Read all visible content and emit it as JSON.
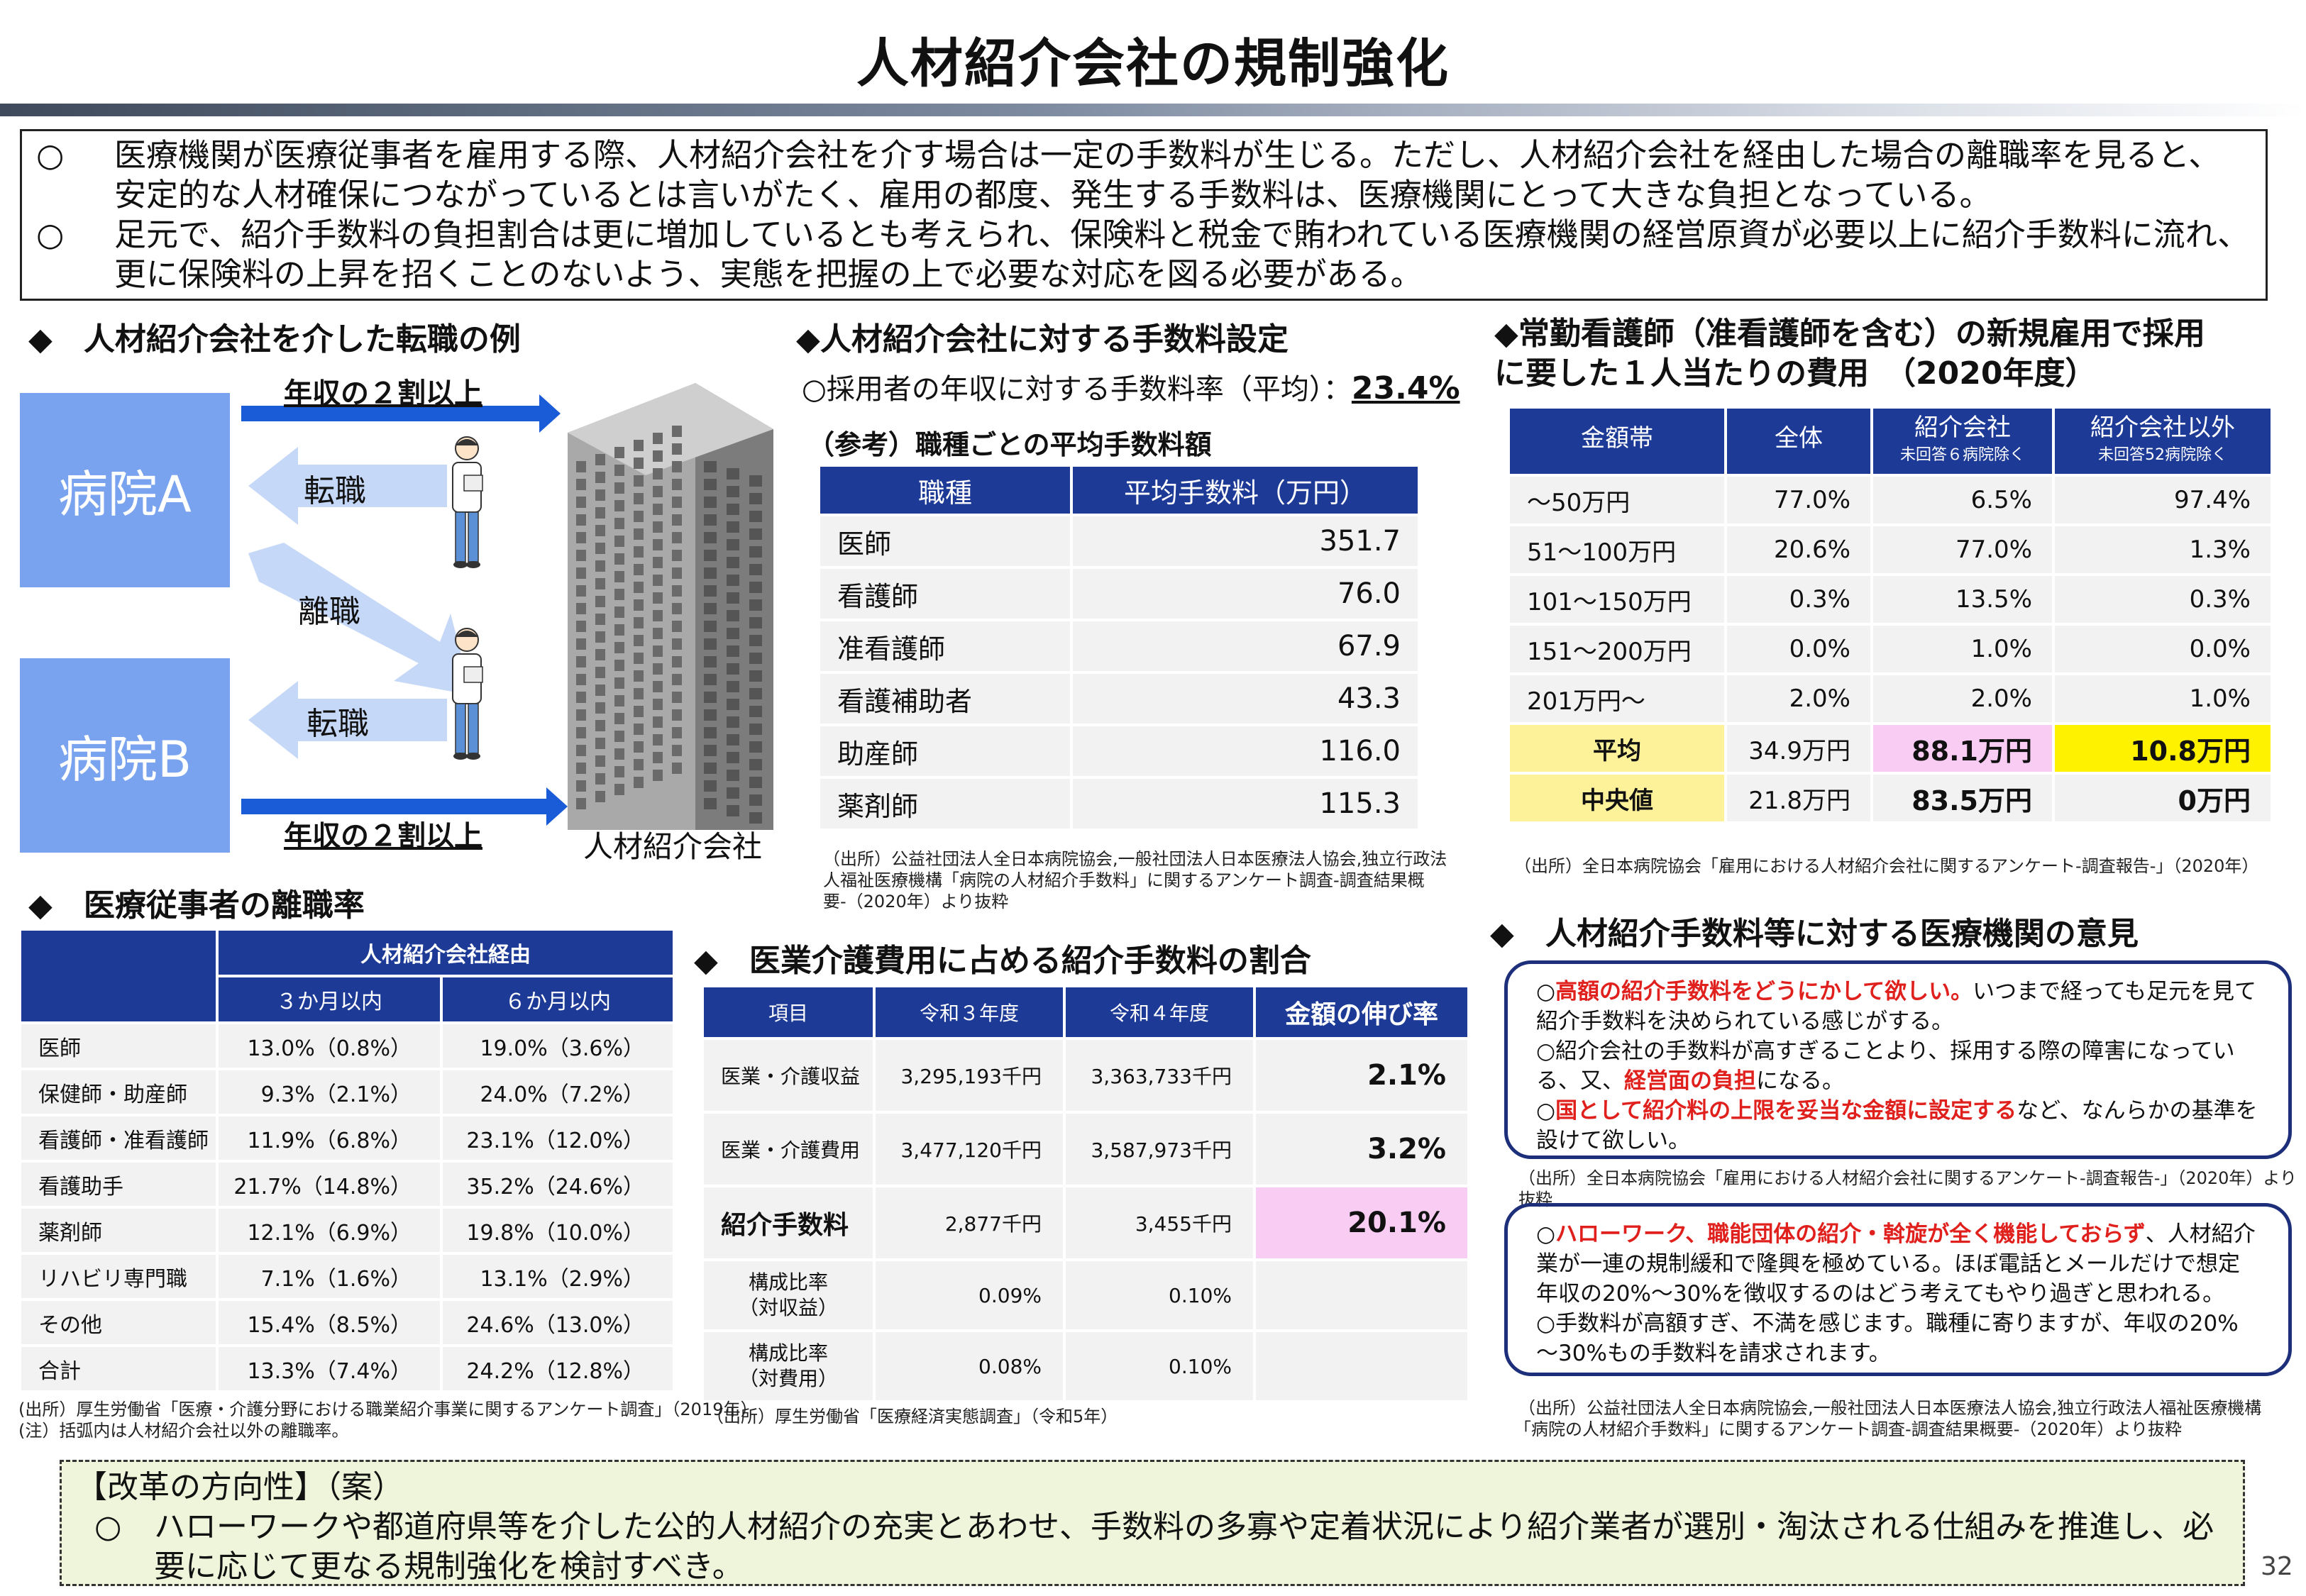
{
  "title": "人材紹介会社の規制強化",
  "intro": [
    {
      "mark": "○",
      "text": "医療機関が医療従事者を雇用する際、人材紹介会社を介す場合は一定の手数料が生じる。ただし、人材紹介会社を経由した場合の離職率を見ると、安定的な人材確保につながっているとは言いがたく、雇用の都度、発生する手数料は、医療機関にとって大きな負担となっている。"
    },
    {
      "mark": "○",
      "text": "足元で、紹介手数料の負担割合は更に増加しているとも考えられ、保険料と税金で賄われている医療機関の経営原資が必要以上に紹介手数料に流れ、更に保険料の上昇を招くことのないよう、実態を把握の上で必要な対応を図る必要がある。"
    }
  ],
  "diagram": {
    "heading": "◆　人材紹介会社を介した転職の例",
    "hospital_a": "病院A",
    "hospital_b": "病院B",
    "income_top": "年収の２割以上",
    "income_bottom": "年収の２割以上",
    "tenshoku1": "転職",
    "rishoku": "離職",
    "tenshoku2": "転職",
    "company": "人材紹介会社"
  },
  "fee": {
    "heading": "◆人材紹介会社に対する手数料設定",
    "rate_label": "○採用者の年収に対する手数料率（平均）：",
    "rate_value": "23.4%",
    "ref_heading": "（参考）職種ごとの平均手数料額",
    "headers": [
      "職種",
      "平均手数料（万円）"
    ],
    "rows": [
      [
        "医師",
        "351.7"
      ],
      [
        "看護師",
        "76.0"
      ],
      [
        "准看護師",
        "67.9"
      ],
      [
        "看護補助者",
        "43.3"
      ],
      [
        "助産師",
        "116.0"
      ],
      [
        "薬剤師",
        "115.3"
      ]
    ],
    "source": "（出所）公益社団法人全日本病院協会,一般社団法人日本医療法人協会,独立行政法人福祉医療機構「病院の人材紹介手数料」に関するアンケート調査-調査結果概要-（2020年）より抜粋"
  },
  "nurse": {
    "heading1": "◆常勤看護師（准看護師を含む）の新規雇用で採用",
    "heading2": "に要した１人当たりの費用　（2020年度）",
    "headers": [
      "金額帯",
      "全体",
      "紹介会社",
      "紹介会社以外"
    ],
    "subheaders": [
      "",
      "",
      "未回答６病院除く",
      "未回答52病院除く"
    ],
    "rows": [
      [
        "～50万円",
        "77.0%",
        "6.5%",
        "97.4%"
      ],
      [
        "51～100万円",
        "20.6%",
        "77.0%",
        "1.3%"
      ],
      [
        "101～150万円",
        "0.3%",
        "13.5%",
        "0.3%"
      ],
      [
        "151～200万円",
        "0.0%",
        "1.0%",
        "0.0%"
      ],
      [
        "201万円～",
        "2.0%",
        "2.0%",
        "1.0%"
      ]
    ],
    "avg": [
      "平均",
      "34.9万円",
      "88.1万円",
      "10.8万円"
    ],
    "median": [
      "中央値",
      "21.8万円",
      "83.5万円",
      "0万円"
    ],
    "source": "（出所）全日本病院協会「雇用における人材紹介会社に関するアンケート-調査報告-」（2020年）"
  },
  "turnover": {
    "heading": "◆　医療従事者の離職率",
    "group_header": "人材紹介会社経由",
    "headers": [
      "３か月以内",
      "６か月以内"
    ],
    "rows": [
      [
        "医師",
        "13.0%（0.8%）",
        "19.0%（3.6%）"
      ],
      [
        "保健師・助産師",
        "9.3%（2.1%）",
        "24.0%（7.2%）"
      ],
      [
        "看護師・准看護師",
        "11.9%（6.8%）",
        "23.1%（12.0%）"
      ],
      [
        "看護助手",
        "21.7%（14.8%）",
        "35.2%（24.6%）"
      ],
      [
        "薬剤師",
        "12.1%（6.9%）",
        "19.8%（10.0%）"
      ],
      [
        "リハビリ専門職",
        "7.1%（1.6%）",
        "13.1%（2.9%）"
      ],
      [
        "その他",
        "15.4%（8.5%）",
        "24.6%（13.0%）"
      ],
      [
        "合計",
        "13.3%（7.4%）",
        "24.2%（12.8%）"
      ]
    ],
    "source1": "(出所）厚生労働省「医療・介護分野における職業紹介事業に関するアンケート調査」（2019年）",
    "source2": "(注）括弧内は人材紹介会社以外の離職率。"
  },
  "cost": {
    "heading": "◆　医業介護費用に占める紹介手数料の割合",
    "headers": [
      "項目",
      "令和３年度",
      "令和４年度",
      "金額の伸び率"
    ],
    "rows": [
      [
        "医業・介護収益",
        "3,295,193千円",
        "3,363,733千円",
        "2.1%"
      ],
      [
        "医業・介護費用",
        "3,477,120千円",
        "3,587,973千円",
        "3.2%"
      ],
      [
        "紹介手数料",
        "2,877千円",
        "3,455千円",
        "20.1%"
      ]
    ],
    "ratio_rows": [
      [
        "構成比率",
        "（対収益）",
        "0.09%",
        "0.10%"
      ],
      [
        "構成比率",
        "（対費用）",
        "0.08%",
        "0.10%"
      ]
    ],
    "source": "（出所）厚生労働省「医療経済実態調査」（令和5年）"
  },
  "opinions": {
    "heading": "◆　人材紹介手数料等に対する医療機関の意見",
    "box1": [
      {
        "mark": "○",
        "red": "高額の紹介手数料をどうにかして欲しい。",
        "text": "いつまで経っても足元を見て紹介手数料を決められている感じがする。"
      },
      {
        "mark": "○",
        "pre": "紹介会社の手数料が高すぎることより、採用する際の障害になっている、又、",
        "red": "経営面の負担",
        "text": "になる。"
      },
      {
        "mark": "○",
        "red": "国として紹介料の上限を妥当な金額に設定する",
        "text": "など、なんらかの基準を設けて欲しい。"
      }
    ],
    "source1": "（出所）全日本病院協会「雇用における人材紹介会社に関するアンケート-調査報告-」（2020年）より抜粋",
    "box2": [
      {
        "mark": "○",
        "red": "ハローワーク、職能団体の紹介・斡旋が全く機能しておらず",
        "text": "、人材紹介業が一連の規制緩和で隆興を極めている。ほぼ電話とメールだけで想定年収の20%～30%を徴収するのはどう考えてもやり過ぎと思われる。"
      },
      {
        "mark": "○",
        "red": "",
        "text": "手数料が高額すぎ、不満を感じます。職種に寄りますが、年収の20%～30%もの手数料を請求されます。"
      }
    ],
    "source2a": "（出所）公益社団法人全日本病院協会,一般社団法人日本医療法人協会,独立行政法人福祉医療機構",
    "source2b": "「病院の人材紹介手数料」に関するアンケート調査-調査結果概要-（2020年）より抜粋"
  },
  "reform": {
    "heading": "【改革の方向性】（案）",
    "mark": "○",
    "text": "ハローワークや都道府県等を介した公的人材紹介の充実とあわせ、手数料の多寡や定着状況により紹介業者が選別・淘汰される仕組みを推進し、必要に応じて更なる規制強化を検討すべき。"
  },
  "page_number": "32",
  "colors": {
    "navy": "#1d3a96",
    "hospital": "#7aa3ef",
    "arrow_blue": "#1a5bd8",
    "arrow_light": "#c6d8f8",
    "pink": "#f9ccf3",
    "yellow_light": "#fdf29a",
    "yellow": "#fef200",
    "red": "#e0201c",
    "green_bg": "#eef5db"
  }
}
